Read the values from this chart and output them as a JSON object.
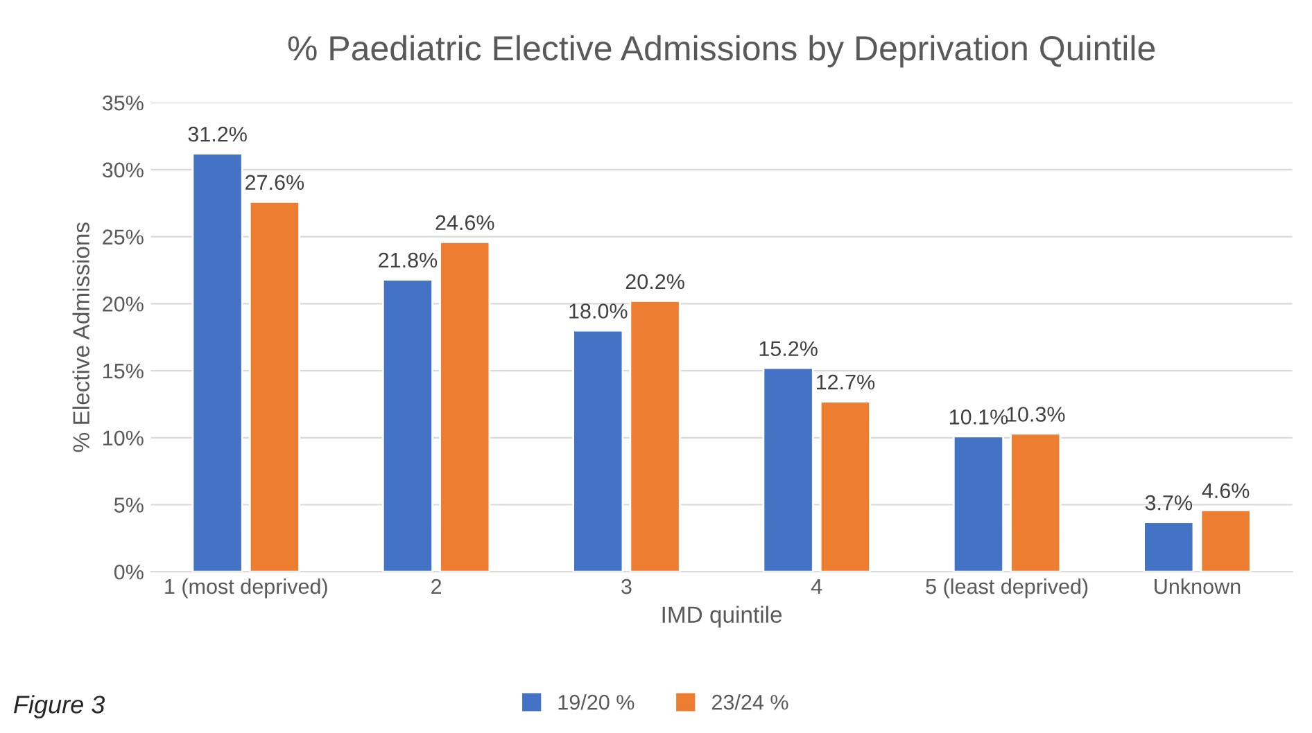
{
  "chart_data": {
    "type": "bar",
    "title": "% Paediatric Elective Admissions by Deprivation Quintile",
    "xlabel": "IMD quintile",
    "ylabel": "% Elective Admissions",
    "categories": [
      "1 (most deprived)",
      "2",
      "3",
      "4",
      "5 (least deprived)",
      "Unknown"
    ],
    "series": [
      {
        "name": "19/20 %",
        "color": "#4472c4",
        "values": [
          31.2,
          21.8,
          18.0,
          15.2,
          10.1,
          3.7
        ],
        "value_labels": [
          "31.2%",
          "21.8%",
          "18.0%",
          "15.2%",
          "10.1%",
          "3.7%"
        ]
      },
      {
        "name": "23/24 %",
        "color": "#ed7d31",
        "values": [
          27.6,
          24.6,
          20.2,
          12.7,
          10.3,
          4.6
        ],
        "value_labels": [
          "27.6%",
          "24.6%",
          "20.2%",
          "12.7%",
          "10.3%",
          "4.6%"
        ]
      }
    ],
    "ylim": [
      0,
      35
    ],
    "yticks": [
      {
        "value": 0,
        "label": "0%"
      },
      {
        "value": 5,
        "label": "5%"
      },
      {
        "value": 10,
        "label": "10%"
      },
      {
        "value": 15,
        "label": "15%"
      },
      {
        "value": 20,
        "label": "20%"
      },
      {
        "value": 25,
        "label": "25%"
      },
      {
        "value": 30,
        "label": "30%"
      },
      {
        "value": 35,
        "label": "35%"
      }
    ],
    "grid": "y",
    "legend": "bottom",
    "annotations": [
      "Figure 3"
    ]
  }
}
